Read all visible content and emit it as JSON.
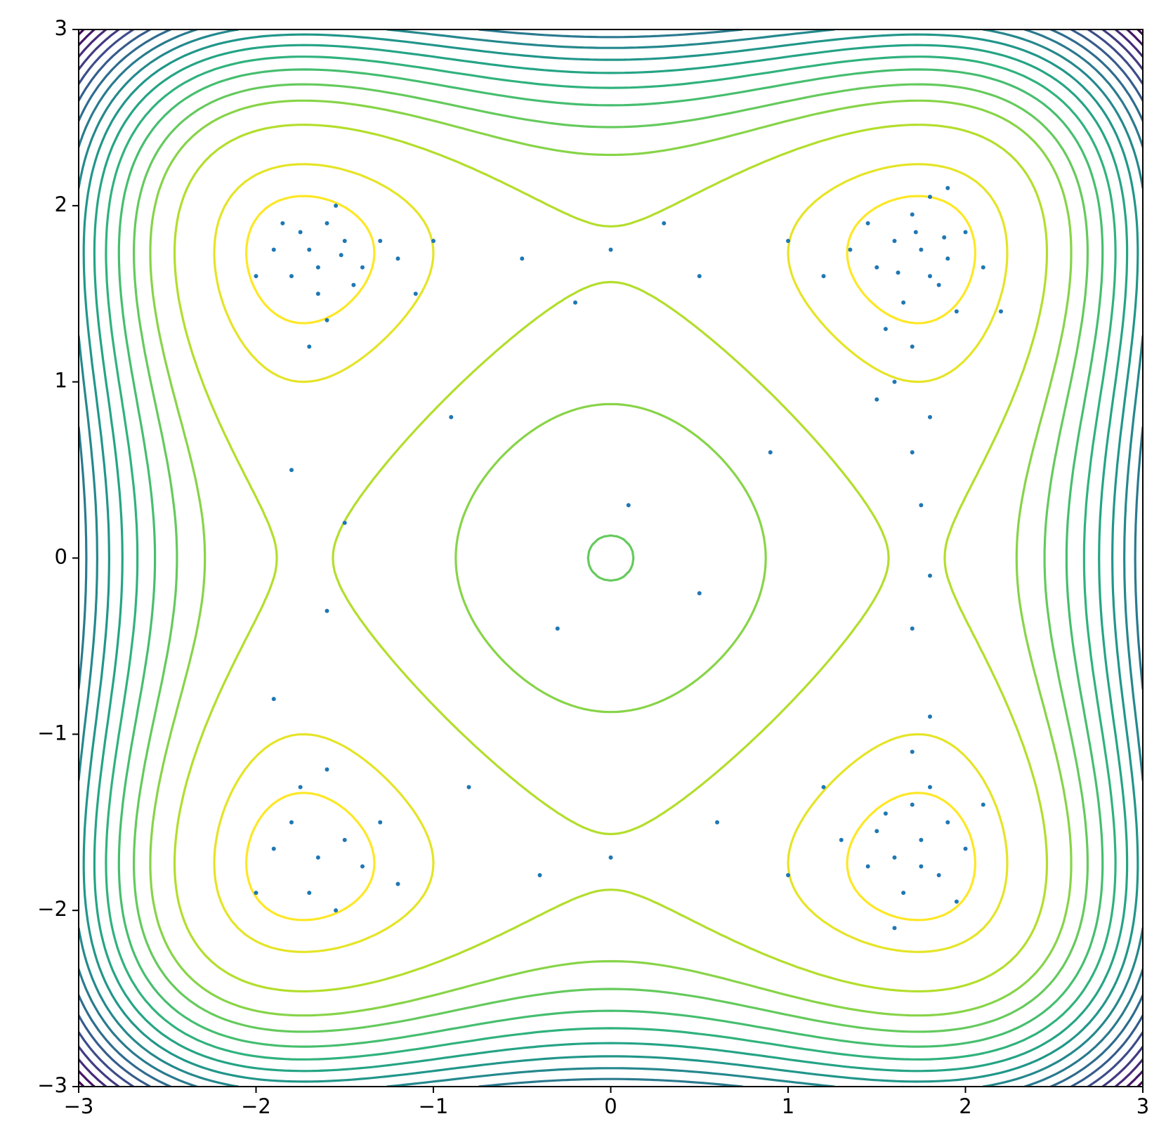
{
  "chart_data": {
    "type": "contour-scatter",
    "xlim": [
      -3,
      3
    ],
    "ylim": [
      -3,
      3
    ],
    "xticks": [
      {
        "value": -3,
        "label": "−3"
      },
      {
        "value": -2,
        "label": "−2"
      },
      {
        "value": -1,
        "label": "−1"
      },
      0,
      1,
      2,
      3
    ],
    "yticks": [
      {
        "value": -3,
        "label": "−3"
      },
      {
        "value": -2,
        "label": "−2"
      },
      {
        "value": -1,
        "label": "−1"
      },
      0,
      1,
      2,
      3
    ],
    "levels": [
      1.5,
      4,
      9.3,
      14,
      17.9,
      22,
      26,
      30,
      34,
      38,
      42,
      46,
      50,
      54,
      58,
      62,
      66,
      70
    ],
    "colormap": "viridis",
    "points": {
      "color": "#1f77b4",
      "x": [
        -1.7,
        -1.5,
        -1.8,
        -1.6,
        -1.4,
        -1.9,
        -1.65,
        -1.55,
        -1.75,
        -1.45,
        -1.85,
        -1.3,
        -1.6,
        -2.0,
        -1.2,
        -1.7,
        -1.0,
        -1.1,
        -1.65,
        -1.52,
        1.75,
        1.6,
        1.9,
        1.7,
        1.85,
        1.5,
        2.0,
        1.65,
        1.8,
        1.45,
        1.95,
        1.55,
        2.1,
        1.7,
        1.35,
        1.9,
        1.8,
        1.62,
        1.72,
        1.88,
        1.2,
        1.0,
        1.6,
        1.8,
        1.5,
        2.2,
        1.7,
        1.75,
        1.8,
        1.7,
        1.75,
        1.6,
        1.9,
        1.7,
        1.85,
        1.5,
        2.0,
        1.65,
        1.8,
        1.45,
        1.95,
        1.55,
        1.75,
        1.3,
        2.1,
        1.7,
        1.8,
        1.2,
        1.0,
        1.6,
        -1.65,
        -1.5,
        -1.8,
        -1.7,
        -1.4,
        -1.9,
        -1.55,
        -1.3,
        -1.75,
        -1.2,
        -1.6,
        -2.0,
        -0.5,
        0,
        0.5,
        -0.2,
        0.3,
        -1.8,
        -1.6,
        -1.9,
        -1.5,
        0.1,
        -0.3,
        0.5,
        -0.8,
        0,
        0.6,
        -0.4,
        0.9,
        -0.9
      ],
      "y": [
        1.75,
        1.8,
        1.6,
        1.9,
        1.65,
        1.75,
        1.5,
        2.0,
        1.85,
        1.55,
        1.9,
        1.8,
        1.35,
        1.6,
        1.7,
        1.2,
        1.8,
        1.5,
        1.65,
        1.72,
        1.75,
        1.8,
        1.7,
        1.95,
        1.55,
        1.65,
        1.85,
        1.45,
        2.05,
        1.9,
        1.4,
        1.3,
        1.65,
        1.2,
        1.75,
        2.1,
        1.6,
        1.62,
        1.85,
        1.82,
        1.6,
        1.8,
        1.0,
        0.8,
        0.9,
        1.4,
        0.6,
        0.3,
        -0.1,
        -0.4,
        -1.6,
        -1.7,
        -1.5,
        -1.4,
        -1.8,
        -1.55,
        -1.65,
        -1.9,
        -1.3,
        -1.75,
        -1.95,
        -1.45,
        -1.75,
        -1.6,
        -1.4,
        -1.1,
        -0.9,
        -1.3,
        -1.8,
        -2.1,
        -1.7,
        -1.6,
        -1.5,
        -1.9,
        -1.75,
        -1.65,
        -2.0,
        -1.5,
        -1.3,
        -1.85,
        -1.2,
        -1.9,
        1.7,
        1.75,
        1.6,
        1.45,
        1.9,
        0.5,
        -0.3,
        -0.8,
        0.2,
        0.3,
        -0.4,
        -0.2,
        -1.3,
        -1.7,
        -1.5,
        -1.8,
        0.6,
        0.8
      ]
    }
  }
}
